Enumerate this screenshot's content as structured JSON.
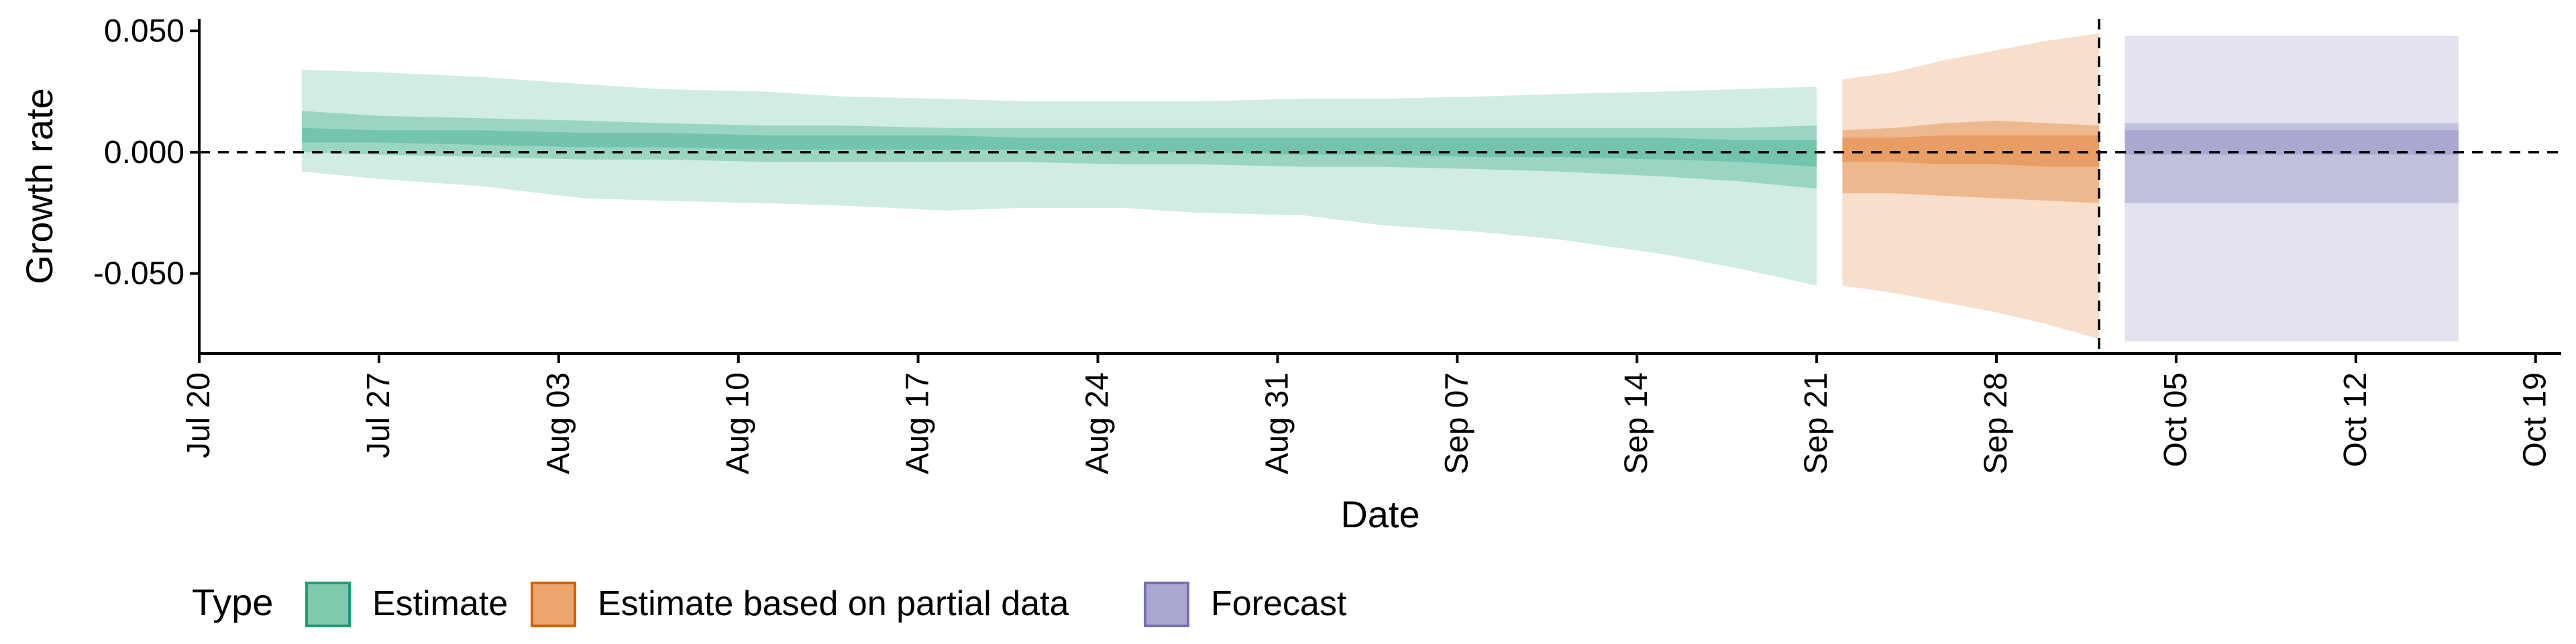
{
  "chart_data": {
    "type": "area",
    "xlabel": "Date",
    "ylabel": "Growth rate",
    "x_ticks": [
      "2020-07-20",
      "2020-07-27",
      "2020-08-03",
      "2020-08-10",
      "2020-08-17",
      "2020-08-24",
      "2020-08-31",
      "2020-09-07",
      "2020-09-14",
      "2020-09-21",
      "2020-09-28",
      "2020-10-05",
      "2020-10-12",
      "2020-10-19"
    ],
    "x_tick_labels": [
      "Jul 20",
      "Jul 27",
      "Aug 03",
      "Aug 10",
      "Aug 17",
      "Aug 24",
      "Aug 31",
      "Sep 07",
      "Sep 14",
      "Sep 21",
      "Sep 28",
      "Oct 05",
      "Oct 12",
      "Oct 19"
    ],
    "xlim": [
      "2020-07-20",
      "2020-10-20"
    ],
    "y_ticks": [
      -0.05,
      0.0,
      0.05
    ],
    "y_tick_labels": [
      "-0.050",
      "0.000",
      "0.050"
    ],
    "ylim": [
      -0.083,
      0.055
    ],
    "hline": 0.0,
    "vline": "2020-10-02",
    "legend": {
      "title": "Type",
      "position": "bottom",
      "items": [
        {
          "label": "Estimate",
          "fill": "#7fc9ad",
          "stroke": "#1b9e77"
        },
        {
          "label": "Estimate based on partial data",
          "fill": "#eda66e",
          "stroke": "#d95f02"
        },
        {
          "label": "Forecast",
          "fill": "#aaa8d0",
          "stroke": "#7570b3"
        }
      ]
    },
    "series": [
      {
        "name": "Estimate",
        "color": "#1b9e77",
        "x": [
          "2020-07-24",
          "2020-07-27",
          "2020-07-31",
          "2020-08-04",
          "2020-08-07",
          "2020-08-11",
          "2020-08-14",
          "2020-08-18",
          "2020-08-21",
          "2020-08-25",
          "2020-08-28",
          "2020-09-01",
          "2020-09-04",
          "2020-09-08",
          "2020-09-11",
          "2020-09-15",
          "2020-09-18",
          "2020-09-21"
        ],
        "outer_lower": [
          -0.008,
          -0.011,
          -0.014,
          -0.019,
          -0.02,
          -0.021,
          -0.022,
          -0.024,
          -0.023,
          -0.023,
          -0.025,
          -0.026,
          -0.03,
          -0.033,
          -0.036,
          -0.042,
          -0.048,
          -0.055
        ],
        "outer_upper": [
          0.034,
          0.033,
          0.031,
          0.028,
          0.026,
          0.025,
          0.023,
          0.022,
          0.021,
          0.021,
          0.021,
          0.022,
          0.022,
          0.023,
          0.024,
          0.025,
          0.026,
          0.027
        ],
        "mid_lower": [
          0.0,
          -0.001,
          -0.002,
          -0.003,
          -0.003,
          -0.004,
          -0.004,
          -0.004,
          -0.004,
          -0.005,
          -0.005,
          -0.006,
          -0.006,
          -0.007,
          -0.008,
          -0.01,
          -0.012,
          -0.015
        ],
        "mid_upper": [
          0.017,
          0.015,
          0.014,
          0.013,
          0.012,
          0.011,
          0.011,
          0.01,
          0.01,
          0.01,
          0.01,
          0.01,
          0.01,
          0.01,
          0.01,
          0.01,
          0.01,
          0.011
        ],
        "inner_lower": [
          0.004,
          0.004,
          0.003,
          0.002,
          0.002,
          0.001,
          0.001,
          0.001,
          0.001,
          0.0,
          0.0,
          -0.001,
          -0.001,
          -0.002,
          -0.002,
          -0.003,
          -0.004,
          -0.006
        ],
        "inner_upper": [
          0.01,
          0.009,
          0.009,
          0.008,
          0.008,
          0.007,
          0.007,
          0.007,
          0.006,
          0.006,
          0.006,
          0.006,
          0.006,
          0.006,
          0.006,
          0.006,
          0.005,
          0.005
        ]
      },
      {
        "name": "Estimate based on partial data",
        "color": "#d95f02",
        "x": [
          "2020-09-22",
          "2020-09-24",
          "2020-09-26",
          "2020-09-28",
          "2020-09-30",
          "2020-10-02"
        ],
        "outer_lower": [
          -0.055,
          -0.058,
          -0.062,
          -0.066,
          -0.071,
          -0.077
        ],
        "outer_upper": [
          0.03,
          0.033,
          0.038,
          0.042,
          0.046,
          0.049
        ],
        "mid_lower": [
          -0.017,
          -0.017,
          -0.018,
          -0.019,
          -0.02,
          -0.021
        ],
        "mid_upper": [
          0.009,
          0.01,
          0.012,
          0.013,
          0.012,
          0.011
        ],
        "inner_lower": [
          -0.004,
          -0.004,
          -0.005,
          -0.005,
          -0.006,
          -0.006
        ],
        "inner_upper": [
          0.006,
          0.006,
          0.007,
          0.007,
          0.007,
          0.007
        ]
      },
      {
        "name": "Forecast",
        "color": "#7570b3",
        "x": [
          "2020-10-03",
          "2020-10-16"
        ],
        "outer_lower": [
          -0.078,
          -0.078
        ],
        "outer_upper": [
          0.048,
          0.048
        ],
        "mid_lower": [
          -0.021,
          -0.021
        ],
        "mid_upper": [
          0.012,
          0.012
        ],
        "inner_lower": [
          -0.001,
          -0.001
        ],
        "inner_upper": [
          0.009,
          0.009
        ]
      }
    ]
  }
}
